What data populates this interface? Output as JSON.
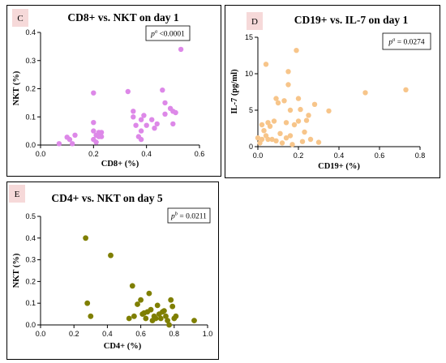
{
  "chart_data": [
    {
      "panel_letter": "C",
      "type": "scatter",
      "title": "CD8+ vs. NKT on day 1",
      "xlabel": "CD8+ (%)",
      "ylabel": "NKT (%)",
      "xlim": [
        0.0,
        0.6
      ],
      "ylim": [
        0.0,
        0.4
      ],
      "x_ticks": [
        "0.0",
        "0.2",
        "0.4",
        "0.6"
      ],
      "y_ticks": [
        "0.0",
        "0.1",
        "0.2",
        "0.3",
        "0.4"
      ],
      "p_label": "p",
      "p_superscript": "a",
      "p_value": " <0.0001",
      "color": "#dd88e8",
      "grid": false,
      "points": [
        [
          0.07,
          0.005
        ],
        [
          0.1,
          0.028
        ],
        [
          0.11,
          0.02
        ],
        [
          0.12,
          0.005
        ],
        [
          0.13,
          0.035
        ],
        [
          0.2,
          0.185
        ],
        [
          0.2,
          0.08
        ],
        [
          0.2,
          0.05
        ],
        [
          0.2,
          0.02
        ],
        [
          0.21,
          0.01
        ],
        [
          0.21,
          0.035
        ],
        [
          0.22,
          0.03
        ],
        [
          0.22,
          0.045
        ],
        [
          0.23,
          0.045
        ],
        [
          0.23,
          0.03
        ],
        [
          0.33,
          0.19
        ],
        [
          0.35,
          0.12
        ],
        [
          0.35,
          0.1
        ],
        [
          0.36,
          0.07
        ],
        [
          0.37,
          0.03
        ],
        [
          0.38,
          0.05
        ],
        [
          0.38,
          0.02
        ],
        [
          0.38,
          0.09
        ],
        [
          0.39,
          0.105
        ],
        [
          0.4,
          0.07
        ],
        [
          0.42,
          0.09
        ],
        [
          0.43,
          0.06
        ],
        [
          0.44,
          0.075
        ],
        [
          0.46,
          0.195
        ],
        [
          0.47,
          0.15
        ],
        [
          0.47,
          0.11
        ],
        [
          0.49,
          0.13
        ],
        [
          0.5,
          0.12
        ],
        [
          0.5,
          0.075
        ],
        [
          0.51,
          0.115
        ],
        [
          0.53,
          0.34
        ]
      ]
    },
    {
      "panel_letter": "D",
      "type": "scatter",
      "title": "CD19+ vs. IL-7 on day 1",
      "xlabel": "CD19+ (%)",
      "ylabel": "IL-7 (pg/ml)",
      "xlim": [
        0.0,
        0.8
      ],
      "ylim": [
        0,
        15
      ],
      "x_ticks": [
        "0.0",
        "0.2",
        "0.4",
        "0.6",
        "0.8"
      ],
      "y_ticks": [
        "0",
        "5",
        "10",
        "15"
      ],
      "p_label": "p",
      "p_superscript": "a",
      "p_value": " = 0.0274",
      "color": "#f7c58a",
      "grid": false,
      "points": [
        [
          0.0,
          1.2
        ],
        [
          0.01,
          0.5
        ],
        [
          0.02,
          1.0
        ],
        [
          0.02,
          3.0
        ],
        [
          0.03,
          2.2
        ],
        [
          0.04,
          1.5
        ],
        [
          0.04,
          11.3
        ],
        [
          0.05,
          3.3
        ],
        [
          0.05,
          1.0
        ],
        [
          0.06,
          2.8
        ],
        [
          0.07,
          1.0
        ],
        [
          0.08,
          3.5
        ],
        [
          0.09,
          6.6
        ],
        [
          0.09,
          0.8
        ],
        [
          0.1,
          6.0
        ],
        [
          0.11,
          1.8
        ],
        [
          0.12,
          0.5
        ],
        [
          0.13,
          6.3
        ],
        [
          0.14,
          1.2
        ],
        [
          0.14,
          3.3
        ],
        [
          0.15,
          10.3
        ],
        [
          0.15,
          8.5
        ],
        [
          0.16,
          5.0
        ],
        [
          0.16,
          1.5
        ],
        [
          0.17,
          0.3
        ],
        [
          0.18,
          3.0
        ],
        [
          0.19,
          13.2
        ],
        [
          0.2,
          6.6
        ],
        [
          0.2,
          3.5
        ],
        [
          0.21,
          5.1
        ],
        [
          0.22,
          0.7
        ],
        [
          0.23,
          2.0
        ],
        [
          0.24,
          3.6
        ],
        [
          0.25,
          4.3
        ],
        [
          0.26,
          1.0
        ],
        [
          0.28,
          5.8
        ],
        [
          0.3,
          0.6
        ],
        [
          0.35,
          4.9
        ],
        [
          0.53,
          7.4
        ],
        [
          0.73,
          7.8
        ]
      ]
    },
    {
      "panel_letter": "E",
      "type": "scatter",
      "title": "CD4+ vs. NKT on day 5",
      "xlabel": "CD4+ (%)",
      "ylabel": "NKT (%)",
      "xlim": [
        0.0,
        1.0
      ],
      "ylim": [
        0.0,
        0.5
      ],
      "x_ticks": [
        "0.0",
        "0.2",
        "0.4",
        "0.6",
        "0.8",
        "1.0"
      ],
      "y_ticks": [
        "0.0",
        "0.1",
        "0.2",
        "0.3",
        "0.4",
        "0.5"
      ],
      "p_label": "p",
      "p_superscript": "b",
      "p_value": " = 0.0211",
      "color": "#7f7f00",
      "grid": false,
      "points": [
        [
          0.27,
          0.4
        ],
        [
          0.28,
          0.1
        ],
        [
          0.3,
          0.04
        ],
        [
          0.42,
          0.32
        ],
        [
          0.53,
          0.03
        ],
        [
          0.55,
          0.18
        ],
        [
          0.56,
          0.04
        ],
        [
          0.58,
          0.095
        ],
        [
          0.6,
          0.115
        ],
        [
          0.61,
          0.05
        ],
        [
          0.62,
          0.055
        ],
        [
          0.63,
          0.03
        ],
        [
          0.64,
          0.06
        ],
        [
          0.65,
          0.145
        ],
        [
          0.66,
          0.07
        ],
        [
          0.67,
          0.02
        ],
        [
          0.68,
          0.04
        ],
        [
          0.69,
          0.03
        ],
        [
          0.7,
          0.09
        ],
        [
          0.71,
          0.05
        ],
        [
          0.72,
          0.03
        ],
        [
          0.73,
          0.06
        ],
        [
          0.74,
          0.065
        ],
        [
          0.75,
          0.04
        ],
        [
          0.76,
          0.02
        ],
        [
          0.77,
          0.0
        ],
        [
          0.78,
          0.115
        ],
        [
          0.79,
          0.085
        ],
        [
          0.8,
          0.03
        ],
        [
          0.81,
          0.04
        ],
        [
          0.92,
          0.02
        ]
      ]
    }
  ]
}
